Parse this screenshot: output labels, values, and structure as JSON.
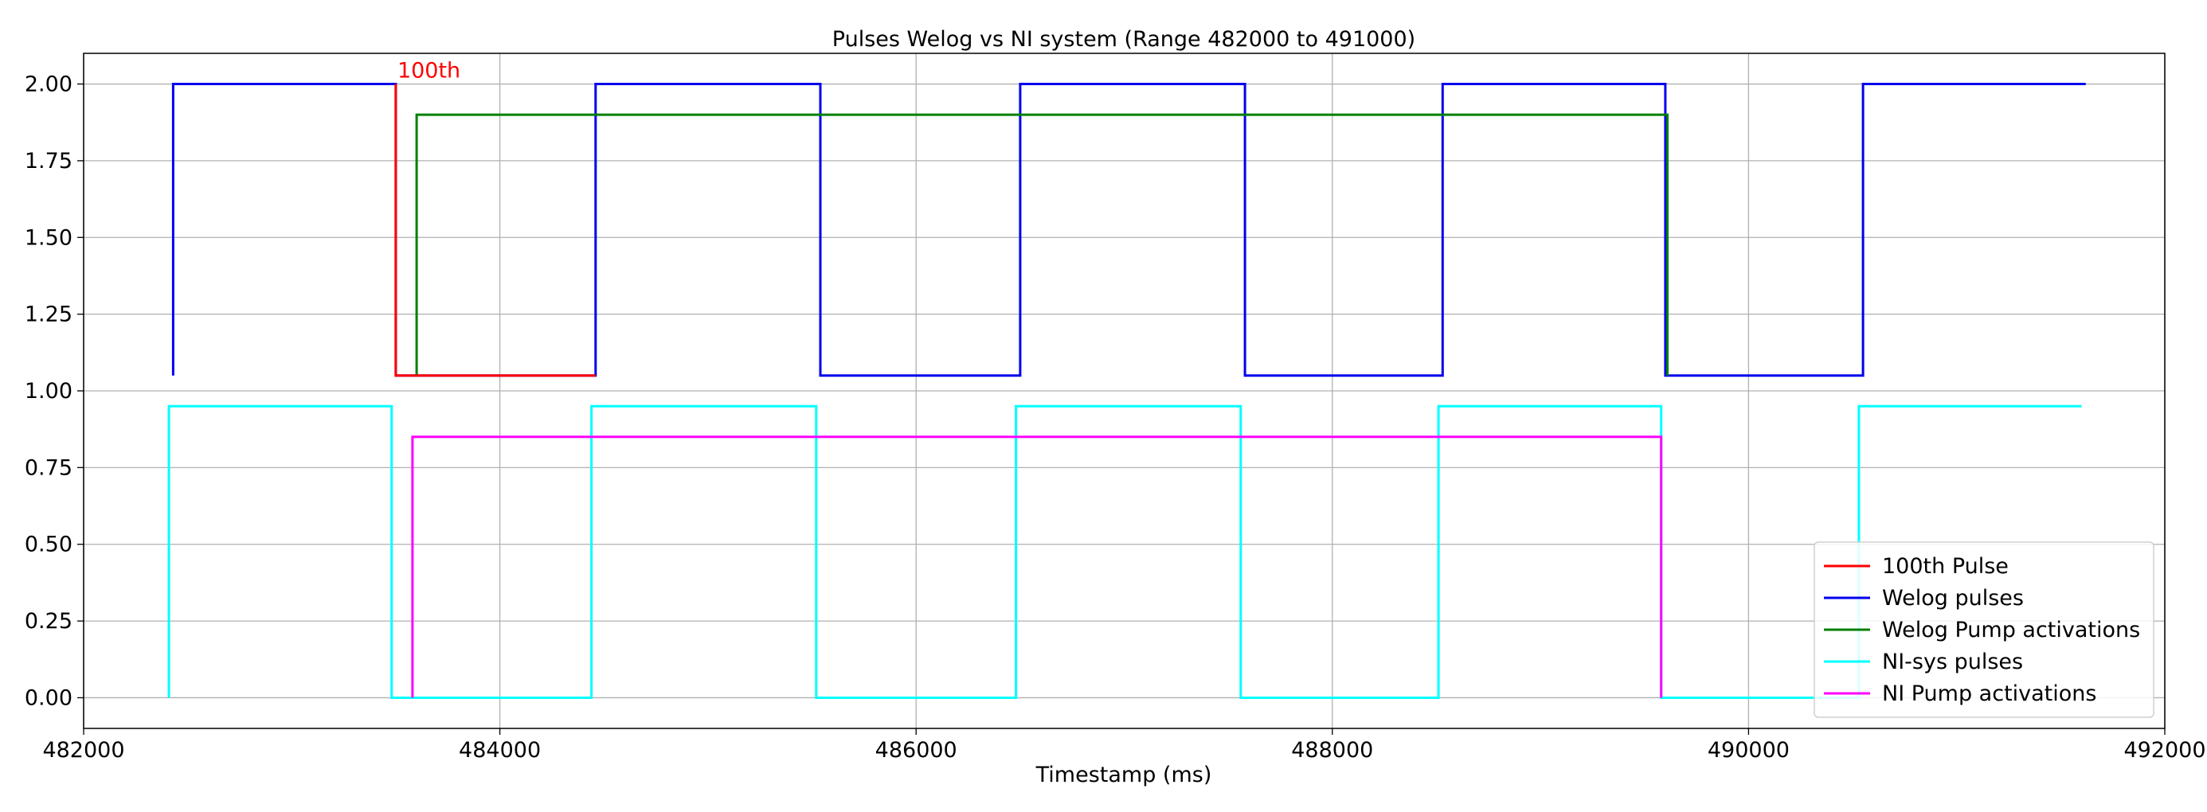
{
  "chart_data": {
    "type": "line",
    "title": "Pulses Welog vs NI system (Range 482000 to 491000)",
    "xlabel": "Timestamp (ms)",
    "ylabel": "",
    "xlim": [
      482000,
      492000
    ],
    "ylim": [
      -0.1,
      2.1
    ],
    "grid": true,
    "legend_position": "lower-right",
    "x_ticks": [
      482000,
      484000,
      486000,
      488000,
      490000,
      492000
    ],
    "x_tick_labels": [
      "482000",
      "484000",
      "486000",
      "488000",
      "490000",
      "492000"
    ],
    "y_ticks": [
      0.0,
      0.25,
      0.5,
      0.75,
      1.0,
      1.25,
      1.5,
      1.75,
      2.0
    ],
    "y_tick_labels": [
      "0.00",
      "0.25",
      "0.50",
      "0.75",
      "1.00",
      "1.25",
      "1.50",
      "1.75",
      "2.00"
    ],
    "series": [
      {
        "name": "Welog pulses",
        "color": "#0000ee",
        "x": [
          482430,
          482430,
          483500,
          483500,
          484460,
          484460,
          485540,
          485540,
          486500,
          486500,
          487580,
          487580,
          488530,
          488530,
          489600,
          489600,
          490550,
          490550,
          491620
        ],
        "y": [
          1.05,
          2.0,
          2.0,
          1.05,
          1.05,
          2.0,
          2.0,
          1.05,
          1.05,
          2.0,
          2.0,
          1.05,
          1.05,
          2.0,
          2.0,
          1.05,
          1.05,
          2.0,
          2.0
        ]
      },
      {
        "name": "Welog Pump activations",
        "color": "#008000",
        "x": [
          483600,
          483600,
          489610,
          489610
        ],
        "y": [
          1.05,
          1.9,
          1.9,
          1.05
        ]
      },
      {
        "name": "NI-sys pulses",
        "color": "#00ffff",
        "x": [
          482410,
          482410,
          483480,
          483480,
          484440,
          484440,
          485520,
          485520,
          486480,
          486480,
          487560,
          487560,
          488510,
          488510,
          489580,
          489580,
          490530,
          490530,
          491600
        ],
        "y": [
          0.0,
          0.95,
          0.95,
          0.0,
          0.0,
          0.95,
          0.95,
          0.0,
          0.0,
          0.95,
          0.95,
          0.0,
          0.0,
          0.95,
          0.95,
          0.0,
          0.0,
          0.95,
          0.95
        ]
      },
      {
        "name": "NI Pump activations",
        "color": "#ff00ff",
        "x": [
          483580,
          483580,
          489580,
          489580
        ],
        "y": [
          0.0,
          0.85,
          0.85,
          0.0
        ]
      },
      {
        "name": "100th Pulse",
        "color": "#ff0000",
        "x": [
          483500,
          483500,
          484460
        ],
        "y": [
          2.0,
          1.05,
          1.05
        ]
      }
    ],
    "legend": [
      {
        "label": "100th Pulse",
        "color": "#ff0000"
      },
      {
        "label": "Welog pulses",
        "color": "#0000ee"
      },
      {
        "label": "Welog Pump activations",
        "color": "#008000"
      },
      {
        "label": "NI-sys pulses",
        "color": "#00ffff"
      },
      {
        "label": "NI Pump activations",
        "color": "#ff00ff"
      }
    ],
    "annotations": [
      {
        "text": "100th",
        "x": 483500,
        "y": 2.0,
        "color": "#ff0000"
      }
    ]
  }
}
